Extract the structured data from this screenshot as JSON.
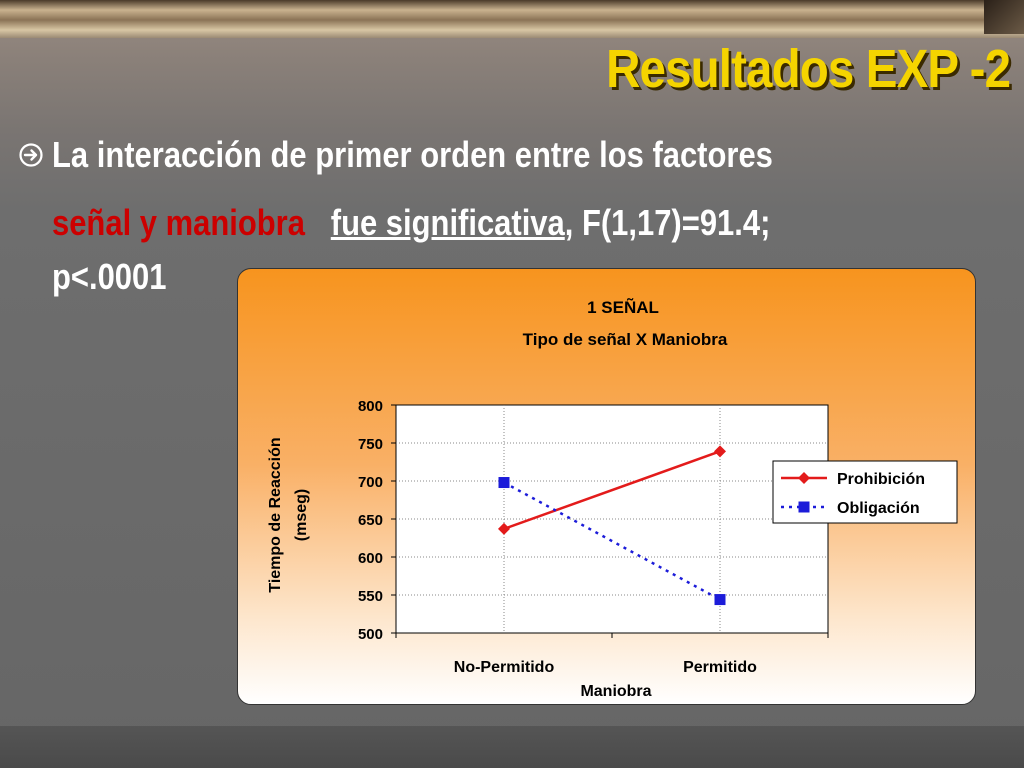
{
  "slide": {
    "title": "Resultados EXP -2",
    "line1": "La interacción de primer orden entre los factores",
    "line2_red": "señal y maniobra",
    "line2_underline": "fue significativa",
    "line2_rest": ", F(1,17)=91.4;",
    "line3": "p<.0001"
  },
  "chart_data": {
    "type": "line",
    "title": "1 SEÑAL",
    "subtitle": "Tipo de señal X Maniobra",
    "xlabel": "Maniobra",
    "ylabel_line1": "Tiempo de Reacción",
    "ylabel_line2": "(mseg)",
    "categories": [
      "No-Permitido",
      "Permitido"
    ],
    "ylim": [
      500,
      800
    ],
    "yticks": [
      500,
      550,
      600,
      650,
      700,
      750,
      800
    ],
    "grid": true,
    "legend_position": "right",
    "series": [
      {
        "name": "Prohibición",
        "values": [
          637,
          739
        ],
        "color": "#e31b1b",
        "marker": "diamond",
        "dash": "solid"
      },
      {
        "name": "Obligación",
        "values": [
          698,
          544
        ],
        "color": "#1c1cd9",
        "marker": "square",
        "dash": "dotted"
      }
    ]
  }
}
